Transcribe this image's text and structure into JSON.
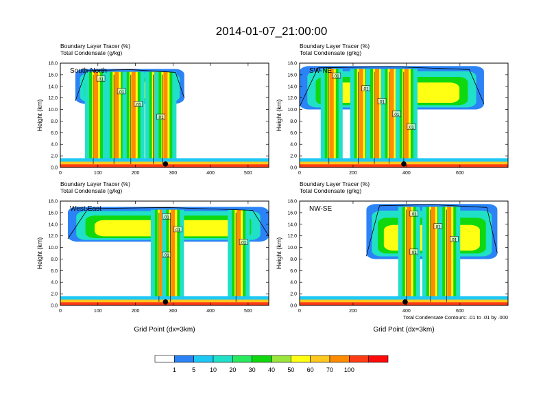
{
  "figure": {
    "main_title": "2014-01-07_21:00:00",
    "note": "Total Condensate Contours: .01 to .01 by .000",
    "colorbar_labels": [
      "1",
      "5",
      "10",
      "20",
      "30",
      "40",
      "50",
      "60",
      "70",
      "100"
    ],
    "colorbar_colors": [
      "#ffffff",
      "#2b83f5",
      "#1ec8f5",
      "#20e0c8",
      "#29ea5e",
      "#0fd80f",
      "#9be63c",
      "#ffff14",
      "#ffc81e",
      "#ff8c00",
      "#ff3c14",
      "#ff0a0a"
    ]
  },
  "chart_data": [
    {
      "type": "heatmap",
      "title": "South-North",
      "header_line1": "Boundary Layer Tracer   (%)",
      "header_line2": "Total Condensate   (g/kg)",
      "ylabel": "Height (km)",
      "xlabel": "",
      "x_ticks": [
        "0",
        "100",
        "200",
        "300",
        "400",
        "500"
      ],
      "y_ticks": [
        "0.0",
        "2.0",
        "4.0",
        "6.0",
        "8.0",
        "10.0",
        "12.0",
        "14.0",
        "16.0",
        "18.0"
      ],
      "xlim": [
        0,
        555
      ],
      "ylim": [
        0,
        18
      ],
      "contour_labels": [
        ".01",
        ".01",
        ".01",
        ".01"
      ],
      "marker_x": 280,
      "towers": [
        95,
        150,
        195,
        255,
        280
      ],
      "anvil": [
        40,
        330,
        11,
        17
      ]
    },
    {
      "type": "heatmap",
      "title": "SW-NE",
      "header_line1": "Boundary Layer Tracer   (%)",
      "header_line2": "Total Condensate   (g/kg)",
      "ylabel": "Height (km)",
      "xlabel": "",
      "x_ticks": [
        "0",
        "200",
        "400",
        "600"
      ],
      "y_ticks": [
        "0.0",
        "2.0",
        "4.0",
        "6.0",
        "8.0",
        "10.0",
        "12.0",
        "14.0",
        "16.0",
        "18.0"
      ],
      "xlim": [
        0,
        780
      ],
      "ylim": [
        0,
        18
      ],
      "contour_labels": [
        ".01",
        ".01",
        ".01",
        ".01",
        ".01"
      ],
      "marker_x": 390,
      "towers": [
        120,
        230,
        290,
        345,
        400
      ],
      "anvil": [
        0,
        690,
        10,
        17.5
      ]
    },
    {
      "type": "heatmap",
      "title": "West-East",
      "header_line1": "Boundary Layer Tracer   (%)",
      "header_line2": "Total Condensate   (g/kg)",
      "ylabel": "Height (km)",
      "xlabel": "Grid Point (dx=3km)",
      "x_ticks": [
        "0",
        "100",
        "200",
        "300",
        "400",
        "500"
      ],
      "y_ticks": [
        "0.0",
        "2.0",
        "4.0",
        "6.0",
        "8.0",
        "10.0",
        "12.0",
        "14.0",
        "16.0",
        "18.0"
      ],
      "xlim": [
        0,
        555
      ],
      "ylim": [
        0,
        18
      ],
      "contour_labels": [
        ".01",
        ".01",
        ".01",
        ".01"
      ],
      "marker_x": 280,
      "towers": [
        270,
        300,
        475
      ],
      "anvil": [
        20,
        555,
        11,
        17
      ]
    },
    {
      "type": "heatmap",
      "title": "NW-SE",
      "header_line1": "Boundary Layer Tracer   (%)",
      "header_line2": "Total Condensate   (g/kg)",
      "ylabel": "Height (km)",
      "xlabel": "Grid Point (dx=3km)",
      "x_ticks": [
        "0",
        "200",
        "400",
        "600"
      ],
      "y_ticks": [
        "0.0",
        "2.0",
        "4.0",
        "6.0",
        "8.0",
        "10.0",
        "12.0",
        "14.0",
        "16.0",
        "18.0"
      ],
      "xlim": [
        0,
        780
      ],
      "ylim": [
        0,
        18
      ],
      "contour_labels": [
        ".01",
        ".01",
        ".01",
        ".01"
      ],
      "marker_x": 395,
      "towers": [
        410,
        500,
        560
      ],
      "anvil": [
        250,
        740,
        8,
        17.5
      ]
    }
  ]
}
